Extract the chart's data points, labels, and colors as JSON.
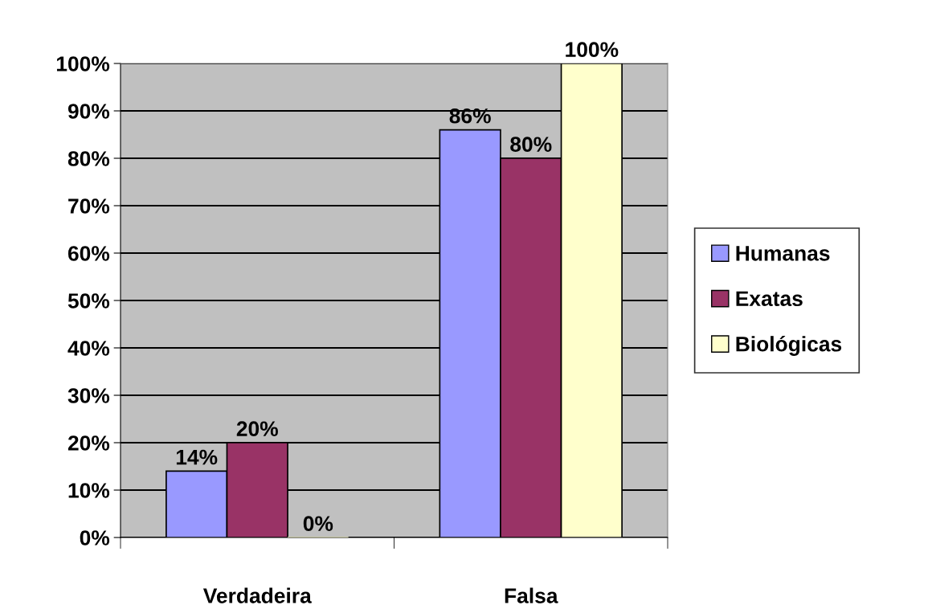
{
  "chart_data": {
    "type": "bar",
    "categories": [
      "Verdadeira",
      "Falsa"
    ],
    "series": [
      {
        "name": "Humanas",
        "color": "#9999ff",
        "values": [
          14,
          86
        ],
        "value_labels": [
          "14%",
          "86%"
        ]
      },
      {
        "name": "Exatas",
        "color": "#993366",
        "values": [
          20,
          80
        ],
        "value_labels": [
          "20%",
          "80%"
        ]
      },
      {
        "name": "Biológicas",
        "color": "#ffffcc",
        "values": [
          0,
          100
        ],
        "value_labels": [
          "0%",
          "100%"
        ]
      }
    ],
    "ylim": [
      0,
      100
    ],
    "yticks": [
      {
        "value": 0,
        "label": "0%"
      },
      {
        "value": 10,
        "label": "10%"
      },
      {
        "value": 20,
        "label": "20%"
      },
      {
        "value": 30,
        "label": "30%"
      },
      {
        "value": 40,
        "label": "40%"
      },
      {
        "value": 50,
        "label": "50%"
      },
      {
        "value": 60,
        "label": "60%"
      },
      {
        "value": 70,
        "label": "70%"
      },
      {
        "value": 80,
        "label": "80%"
      },
      {
        "value": 90,
        "label": "90%"
      },
      {
        "value": 100,
        "label": "100%"
      }
    ],
    "grid": "y",
    "legend": "right"
  }
}
